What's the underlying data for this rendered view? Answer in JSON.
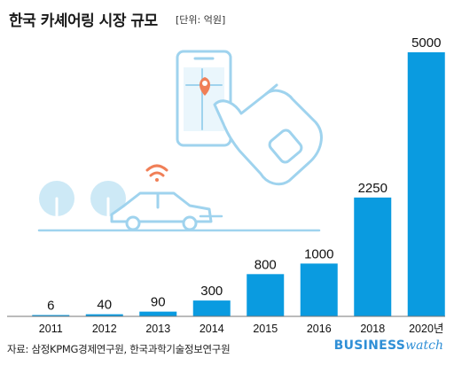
{
  "header": {
    "title": "한국 카셰어링 시장 규모",
    "unit": "[단위: 억원]"
  },
  "chart_data": {
    "type": "bar",
    "title": "한국 카셰어링 시장 규모",
    "unit": "[단위: 억원]",
    "categories": [
      "2011",
      "2012",
      "2013",
      "2014",
      "2015",
      "2016",
      "2018",
      "2020년"
    ],
    "values": [
      6,
      40,
      90,
      300,
      800,
      1000,
      2250,
      5000
    ],
    "value_labels": [
      "6",
      "40",
      "90",
      "300",
      "800",
      "1000",
      "2250",
      "5000"
    ],
    "ylim": [
      0,
      5000
    ],
    "grid": false,
    "colors": {
      "bar": "#0a9be0",
      "illustration": "#9fd3ee",
      "wifi": "#f07f57",
      "pin": "#f07f57"
    }
  },
  "footer": {
    "source": "자료: 삼정KPMG경제연구원, 한국과학기술정보연구원",
    "brand_bold": "BUSINESS",
    "brand_light": "watch"
  }
}
